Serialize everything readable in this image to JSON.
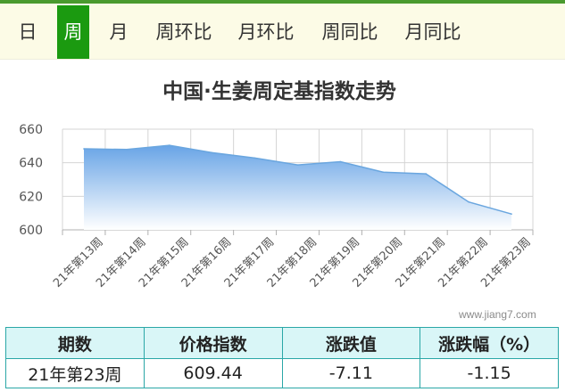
{
  "tabs": [
    {
      "label": "日",
      "active": false
    },
    {
      "label": "周",
      "active": true
    },
    {
      "label": "月",
      "active": false
    },
    {
      "label": "周环比",
      "active": false
    },
    {
      "label": "月环比",
      "active": false
    },
    {
      "label": "周同比",
      "active": false
    },
    {
      "label": "月同比",
      "active": false
    }
  ],
  "chart_data": {
    "type": "area",
    "title": "中国·生姜周定基指数走势",
    "categories": [
      "21年第13周",
      "21年第14周",
      "21年第15周",
      "21年第16周",
      "21年第17周",
      "21年第18周",
      "21年第19周",
      "21年第20周",
      "21年第21周",
      "21年第22周",
      "21年第23周"
    ],
    "series": [
      {
        "values": [
          648.3,
          647.9,
          650.4,
          646.0,
          642.8,
          638.7,
          640.6,
          634.4,
          633.4,
          616.6,
          609.44
        ]
      }
    ],
    "y_ticks": [
      600,
      620,
      640,
      660
    ],
    "ylim": [
      600,
      660
    ],
    "grid": true,
    "colors": {
      "line": "#6aa6df",
      "fill_top": "#68a4e6",
      "fill_bottom": "#ffffff"
    }
  },
  "watermark": "www.jiang7.com",
  "table": {
    "headers": [
      "期数",
      "价格指数",
      "涨跌值",
      "涨跌幅（%）"
    ],
    "row": [
      "21年第23周",
      "609.44",
      "-7.11",
      "-1.15"
    ]
  }
}
